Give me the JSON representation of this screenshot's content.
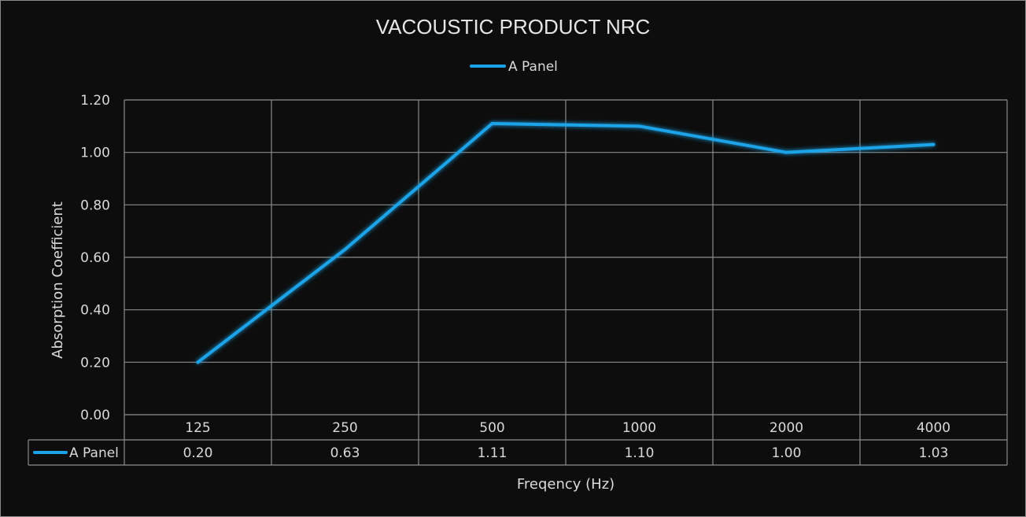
{
  "chart_data": {
    "type": "line",
    "title": "VACOUSTIC PRODUCT NRC",
    "xlabel": "Freqency (Hz)",
    "ylabel": "Absorption Coefficient",
    "categories": [
      "125",
      "250",
      "500",
      "1000",
      "2000",
      "4000"
    ],
    "series": [
      {
        "name": "A Panel",
        "values": [
          0.2,
          0.63,
          1.11,
          1.1,
          1.0,
          1.03
        ],
        "value_labels": [
          "0.20",
          "0.63",
          "1.11",
          "1.10",
          "1.00",
          "1.03"
        ],
        "color": "#1aa3e8"
      }
    ],
    "ylim": [
      0,
      1.2
    ],
    "yticks": [
      "0.00",
      "0.20",
      "0.40",
      "0.60",
      "0.80",
      "1.00",
      "1.20"
    ],
    "grid": true,
    "legend_position": "top-center",
    "data_table": true
  },
  "colors": {
    "background": "#0d0d0d",
    "grid": "#8c8c8c",
    "series": "#1aa3e8",
    "text": "#d9d9d9"
  }
}
